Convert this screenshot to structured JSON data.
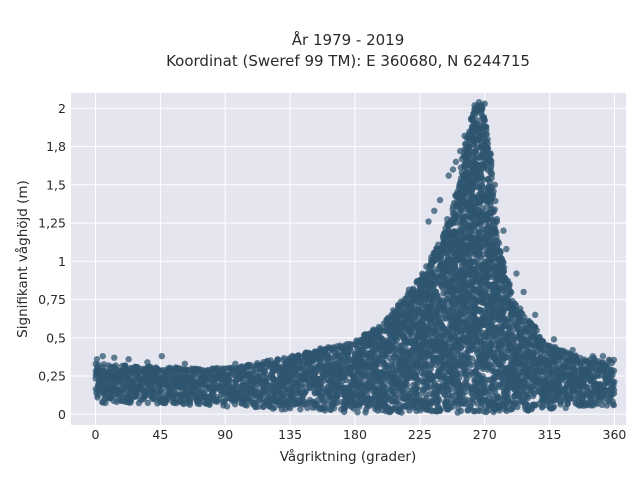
{
  "chart_data": {
    "type": "scatter",
    "title_line1": "År 1979 - 2019",
    "title_line2": "Koordinat (Sweref 99 TM): E 360680, N 6244715",
    "xlabel": "Vågriktning (grader)",
    "ylabel": "Signifikant våghöjd (m)",
    "xlim": [
      -17,
      368
    ],
    "ylim": [
      -0.07,
      2.1
    ],
    "x_ticks": [
      0,
      45,
      90,
      135,
      180,
      225,
      270,
      315,
      360
    ],
    "y_ticks": [
      0,
      0.25,
      0.5,
      0.75,
      1,
      1.25,
      1.5,
      1.75,
      2
    ],
    "y_tick_labels": [
      "0",
      "0,25",
      "0,5",
      "0,75",
      "1",
      "1,25",
      "1,5",
      "1,8",
      "2"
    ],
    "grid": true,
    "legend": "none",
    "colors": {
      "points": "#2f5570",
      "plot_bg": "#e5e5ef",
      "grid": "#ffffff"
    },
    "envelope": [
      {
        "direction": 0,
        "hs_min": 0.07,
        "hs_max": 0.33
      },
      {
        "direction": 45,
        "hs_min": 0.07,
        "hs_max": 0.31
      },
      {
        "direction": 90,
        "hs_min": 0.05,
        "hs_max": 0.3
      },
      {
        "direction": 135,
        "hs_min": 0.03,
        "hs_max": 0.38
      },
      {
        "direction": 180,
        "hs_min": 0.01,
        "hs_max": 0.48
      },
      {
        "direction": 200,
        "hs_min": 0.01,
        "hs_max": 0.6
      },
      {
        "direction": 225,
        "hs_min": 0.01,
        "hs_max": 0.9
      },
      {
        "direction": 240,
        "hs_min": 0.01,
        "hs_max": 1.15
      },
      {
        "direction": 250,
        "hs_min": 0.01,
        "hs_max": 1.45
      },
      {
        "direction": 258,
        "hs_min": 0.01,
        "hs_max": 1.85
      },
      {
        "direction": 263,
        "hs_min": 0.01,
        "hs_max": 2.02
      },
      {
        "direction": 268,
        "hs_min": 0.01,
        "hs_max": 2.03
      },
      {
        "direction": 273,
        "hs_min": 0.01,
        "hs_max": 1.8
      },
      {
        "direction": 280,
        "hs_min": 0.01,
        "hs_max": 1.1
      },
      {
        "direction": 290,
        "hs_min": 0.02,
        "hs_max": 0.75
      },
      {
        "direction": 315,
        "hs_min": 0.03,
        "hs_max": 0.45
      },
      {
        "direction": 340,
        "hs_min": 0.05,
        "hs_max": 0.37
      },
      {
        "direction": 360,
        "hs_min": 0.06,
        "hs_max": 0.36
      }
    ],
    "outliers": [
      [
        1,
        0.36
      ],
      [
        5,
        0.38
      ],
      [
        13,
        0.37
      ],
      [
        23,
        0.36
      ],
      [
        36,
        0.34
      ],
      [
        46,
        0.38
      ],
      [
        62,
        0.33
      ],
      [
        97,
        0.33
      ],
      [
        101,
        0.31
      ],
      [
        114,
        0.32
      ],
      [
        156,
        0.43
      ],
      [
        173,
        0.45
      ],
      [
        231,
        1.26
      ],
      [
        235,
        1.33
      ],
      [
        239,
        1.4
      ],
      [
        245,
        1.56
      ],
      [
        248,
        1.6
      ],
      [
        250,
        1.65
      ],
      [
        253,
        1.72
      ],
      [
        256,
        1.82
      ],
      [
        262,
        1.96
      ],
      [
        266,
        2.04
      ],
      [
        270,
        2.03
      ],
      [
        277,
        1.5
      ],
      [
        283,
        1.2
      ],
      [
        285,
        1.08
      ],
      [
        292,
        0.92
      ],
      [
        297,
        0.8
      ],
      [
        305,
        0.65
      ],
      [
        318,
        0.49
      ],
      [
        331,
        0.42
      ],
      [
        345,
        0.38
      ],
      [
        352,
        0.38
      ]
    ]
  }
}
